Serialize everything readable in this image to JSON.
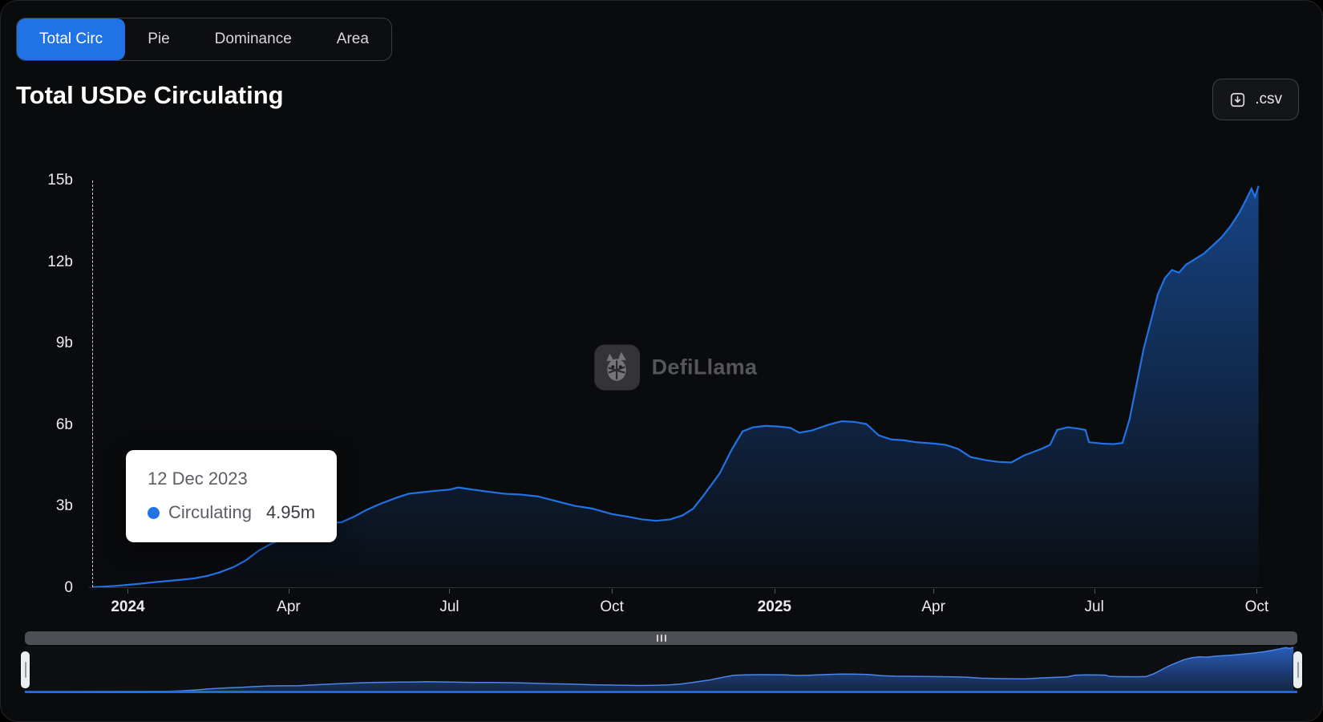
{
  "header": {
    "title": "Total USDe Circulating",
    "csv_button_label": ".csv"
  },
  "tabs": {
    "items": [
      {
        "label": "Total Circ",
        "active": true
      },
      {
        "label": "Pie",
        "active": false
      },
      {
        "label": "Dominance",
        "active": false
      },
      {
        "label": "Area",
        "active": false
      }
    ]
  },
  "watermark": {
    "text": "DefiLlama"
  },
  "tooltip": {
    "date": "12 Dec 2023",
    "series_label": "Circulating",
    "value": "4.95m"
  },
  "colors": {
    "background": "#0a0b0d",
    "accent_blue": "#2172e5",
    "tooltip_bg": "#ffffff",
    "axis_text": "#ededef",
    "watermark_text": "#55565c",
    "scrollbar_gray": "#4e4f54",
    "handle_white": "#ecedf0",
    "mini_fill_top": "#2b62c4",
    "mini_fill_bottom": "#16294c"
  },
  "chart_data": {
    "type": "area",
    "title": "Total USDe Circulating",
    "value_unit": "billions of USDe",
    "grid": false,
    "legend": "none",
    "ylim": [
      0,
      15
    ],
    "yticks": [
      {
        "value": 0,
        "label": "0"
      },
      {
        "value": 3,
        "label": "3b"
      },
      {
        "value": 6,
        "label": "6b"
      },
      {
        "value": 9,
        "label": "9b"
      },
      {
        "value": 12,
        "label": "12b"
      },
      {
        "value": 15,
        "label": "15b"
      }
    ],
    "x_domain": [
      "2023-12-10",
      "2025-10-04"
    ],
    "xticks": [
      {
        "date": "2024-01-01",
        "label": "2024",
        "bold": true
      },
      {
        "date": "2024-04-01",
        "label": "Apr",
        "bold": false
      },
      {
        "date": "2024-07-01",
        "label": "Jul",
        "bold": false
      },
      {
        "date": "2024-10-01",
        "label": "Oct",
        "bold": false
      },
      {
        "date": "2025-01-01",
        "label": "2025",
        "bold": true
      },
      {
        "date": "2025-04-01",
        "label": "Apr",
        "bold": false
      },
      {
        "date": "2025-07-01",
        "label": "Jul",
        "bold": false
      },
      {
        "date": "2025-10-01",
        "label": "Oct",
        "bold": false
      }
    ],
    "crosshair": {
      "date": "2023-12-12",
      "value_label": "4.95m"
    },
    "series": [
      {
        "name": "Circulating",
        "color": "#2172e5",
        "points": [
          [
            "2023-12-12",
            0.005
          ],
          [
            "2023-12-18",
            0.02
          ],
          [
            "2023-12-25",
            0.05
          ],
          [
            "2024-01-01",
            0.09
          ],
          [
            "2024-01-08",
            0.13
          ],
          [
            "2024-01-15",
            0.18
          ],
          [
            "2024-01-22",
            0.22
          ],
          [
            "2024-02-01",
            0.28
          ],
          [
            "2024-02-08",
            0.33
          ],
          [
            "2024-02-15",
            0.42
          ],
          [
            "2024-02-22",
            0.55
          ],
          [
            "2024-03-01",
            0.75
          ],
          [
            "2024-03-08",
            1.0
          ],
          [
            "2024-03-15",
            1.35
          ],
          [
            "2024-03-22",
            1.6
          ],
          [
            "2024-04-01",
            1.85
          ],
          [
            "2024-04-08",
            2.1
          ],
          [
            "2024-04-15",
            2.3
          ],
          [
            "2024-04-22",
            2.35
          ],
          [
            "2024-05-01",
            2.4
          ],
          [
            "2024-05-08",
            2.6
          ],
          [
            "2024-05-15",
            2.85
          ],
          [
            "2024-05-22",
            3.05
          ],
          [
            "2024-06-01",
            3.3
          ],
          [
            "2024-06-08",
            3.45
          ],
          [
            "2024-06-15",
            3.5
          ],
          [
            "2024-06-22",
            3.55
          ],
          [
            "2024-07-01",
            3.6
          ],
          [
            "2024-07-06",
            3.68
          ],
          [
            "2024-07-12",
            3.62
          ],
          [
            "2024-07-20",
            3.55
          ],
          [
            "2024-08-01",
            3.45
          ],
          [
            "2024-08-10",
            3.42
          ],
          [
            "2024-08-20",
            3.35
          ],
          [
            "2024-09-01",
            3.15
          ],
          [
            "2024-09-10",
            3.0
          ],
          [
            "2024-09-20",
            2.9
          ],
          [
            "2024-10-01",
            2.7
          ],
          [
            "2024-10-10",
            2.6
          ],
          [
            "2024-10-18",
            2.5
          ],
          [
            "2024-10-26",
            2.45
          ],
          [
            "2024-11-03",
            2.5
          ],
          [
            "2024-11-10",
            2.65
          ],
          [
            "2024-11-16",
            2.9
          ],
          [
            "2024-11-22",
            3.4
          ],
          [
            "2024-12-01",
            4.2
          ],
          [
            "2024-12-08",
            5.1
          ],
          [
            "2024-12-14",
            5.75
          ],
          [
            "2024-12-20",
            5.9
          ],
          [
            "2024-12-27",
            5.95
          ],
          [
            "2025-01-03",
            5.93
          ],
          [
            "2025-01-10",
            5.88
          ],
          [
            "2025-01-15",
            5.7
          ],
          [
            "2025-01-22",
            5.78
          ],
          [
            "2025-02-01",
            6.0
          ],
          [
            "2025-02-08",
            6.12
          ],
          [
            "2025-02-15",
            6.1
          ],
          [
            "2025-02-22",
            6.02
          ],
          [
            "2025-03-01",
            5.6
          ],
          [
            "2025-03-08",
            5.45
          ],
          [
            "2025-03-15",
            5.42
          ],
          [
            "2025-03-22",
            5.35
          ],
          [
            "2025-04-01",
            5.3
          ],
          [
            "2025-04-08",
            5.25
          ],
          [
            "2025-04-15",
            5.1
          ],
          [
            "2025-04-22",
            4.8
          ],
          [
            "2025-05-01",
            4.68
          ],
          [
            "2025-05-08",
            4.62
          ],
          [
            "2025-05-15",
            4.6
          ],
          [
            "2025-05-22",
            4.85
          ],
          [
            "2025-06-01",
            5.1
          ],
          [
            "2025-06-06",
            5.25
          ],
          [
            "2025-06-10",
            5.8
          ],
          [
            "2025-06-16",
            5.9
          ],
          [
            "2025-06-22",
            5.85
          ],
          [
            "2025-06-26",
            5.8
          ],
          [
            "2025-06-28",
            5.35
          ],
          [
            "2025-07-05",
            5.3
          ],
          [
            "2025-07-12",
            5.28
          ],
          [
            "2025-07-17",
            5.32
          ],
          [
            "2025-07-21",
            6.2
          ],
          [
            "2025-07-25",
            7.5
          ],
          [
            "2025-07-29",
            8.8
          ],
          [
            "2025-08-02",
            9.8
          ],
          [
            "2025-08-06",
            10.8
          ],
          [
            "2025-08-10",
            11.4
          ],
          [
            "2025-08-14",
            11.7
          ],
          [
            "2025-08-18",
            11.6
          ],
          [
            "2025-08-22",
            11.9
          ],
          [
            "2025-08-27",
            12.1
          ],
          [
            "2025-09-01",
            12.3
          ],
          [
            "2025-09-06",
            12.6
          ],
          [
            "2025-09-11",
            12.9
          ],
          [
            "2025-09-16",
            13.3
          ],
          [
            "2025-09-21",
            13.8
          ],
          [
            "2025-09-25",
            14.3
          ],
          [
            "2025-09-28",
            14.7
          ],
          [
            "2025-09-30",
            14.4
          ],
          [
            "2025-10-02",
            14.8
          ]
        ]
      }
    ]
  }
}
